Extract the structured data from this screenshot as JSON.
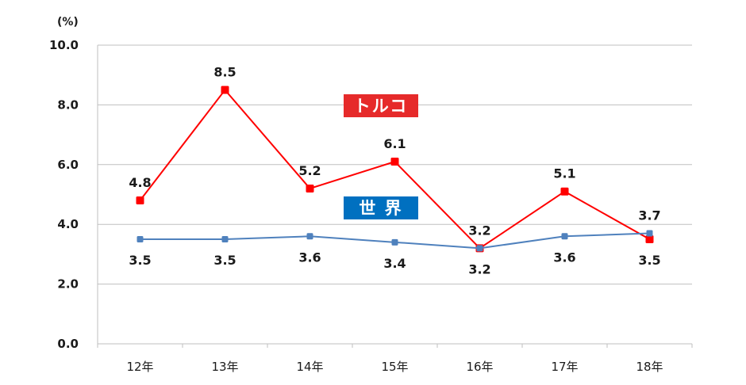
{
  "chart_data": {
    "type": "line",
    "unit_label": "(%)",
    "categories": [
      "12年",
      "13年",
      "14年",
      "15年",
      "16年",
      "17年",
      "18年"
    ],
    "ylim": [
      0,
      10
    ],
    "yticks": [
      "0.0",
      "2.0",
      "4.0",
      "6.0",
      "8.0",
      "10.0"
    ],
    "grid": true,
    "series": [
      {
        "name": "トルコ",
        "color": "#ff0000",
        "values": [
          4.8,
          8.5,
          5.2,
          6.1,
          3.2,
          5.1,
          3.5
        ],
        "labels": [
          "4.8",
          "8.5",
          "5.2",
          "6.1",
          "3.2",
          "5.1",
          "3.5"
        ],
        "label_positions": [
          "above",
          "above",
          "above",
          "above",
          "above",
          "above",
          "below"
        ]
      },
      {
        "name": "世 界",
        "color": "#4f81bd",
        "values": [
          3.5,
          3.5,
          3.6,
          3.4,
          3.2,
          3.6,
          3.7
        ],
        "labels": [
          "3.5",
          "3.5",
          "3.6",
          "3.4",
          "3.2",
          "3.6",
          "3.7"
        ],
        "label_positions": [
          "below",
          "below",
          "below",
          "below",
          "below",
          "below",
          "above"
        ]
      }
    ],
    "legend": [
      {
        "text": "トルコ",
        "color": "#e62a2a"
      },
      {
        "text": "世 界",
        "color": "#0070c0"
      }
    ]
  }
}
